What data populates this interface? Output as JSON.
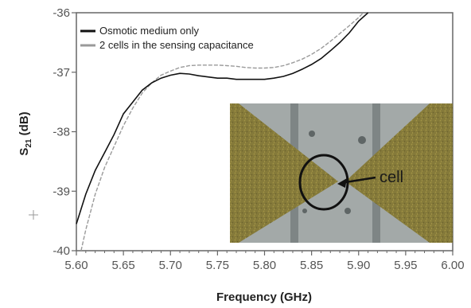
{
  "chart_data": {
    "type": "line",
    "title": "",
    "xlabel": "Frequency (GHz)",
    "ylabel_main": "S",
    "ylabel_sub": "21",
    "ylabel_unit": " (dB)",
    "xlim": [
      5.6,
      6.0
    ],
    "ylim": [
      -40,
      -36
    ],
    "x_ticks": [
      "5.60",
      "5.65",
      "5.70",
      "5.75",
      "5.80",
      "5.85",
      "5.90",
      "5.95",
      "6.00"
    ],
    "y_ticks": [
      "-36",
      "-37",
      "-38",
      "-39",
      "-40"
    ],
    "legend_position": "top-left",
    "series": [
      {
        "name": "Osmotic medium only",
        "color": "#111111",
        "points": [
          [
            5.6,
            -39.55
          ],
          [
            5.61,
            -39.05
          ],
          [
            5.62,
            -38.65
          ],
          [
            5.63,
            -38.35
          ],
          [
            5.64,
            -38.05
          ],
          [
            5.65,
            -37.7
          ],
          [
            5.66,
            -37.5
          ],
          [
            5.67,
            -37.3
          ],
          [
            5.68,
            -37.18
          ],
          [
            5.69,
            -37.1
          ],
          [
            5.7,
            -37.05
          ],
          [
            5.71,
            -37.02
          ],
          [
            5.72,
            -37.03
          ],
          [
            5.73,
            -37.06
          ],
          [
            5.74,
            -37.08
          ],
          [
            5.75,
            -37.1
          ],
          [
            5.76,
            -37.1
          ],
          [
            5.77,
            -37.12
          ],
          [
            5.78,
            -37.12
          ],
          [
            5.79,
            -37.12
          ],
          [
            5.8,
            -37.12
          ],
          [
            5.81,
            -37.1
          ],
          [
            5.82,
            -37.07
          ],
          [
            5.83,
            -37.02
          ],
          [
            5.84,
            -36.95
          ],
          [
            5.85,
            -36.87
          ],
          [
            5.86,
            -36.77
          ],
          [
            5.87,
            -36.64
          ],
          [
            5.88,
            -36.5
          ],
          [
            5.89,
            -36.34
          ],
          [
            5.9,
            -36.14
          ],
          [
            5.91,
            -36.0
          ]
        ]
      },
      {
        "name": "2 cells in the sensing capacitance",
        "color": "#9a9a9a",
        "points": [
          [
            5.605,
            -40.0
          ],
          [
            5.61,
            -39.65
          ],
          [
            5.62,
            -39.05
          ],
          [
            5.63,
            -38.6
          ],
          [
            5.64,
            -38.25
          ],
          [
            5.65,
            -37.9
          ],
          [
            5.66,
            -37.6
          ],
          [
            5.67,
            -37.35
          ],
          [
            5.68,
            -37.18
          ],
          [
            5.69,
            -37.05
          ],
          [
            5.7,
            -36.98
          ],
          [
            5.71,
            -36.92
          ],
          [
            5.72,
            -36.89
          ],
          [
            5.73,
            -36.88
          ],
          [
            5.74,
            -36.88
          ],
          [
            5.75,
            -36.88
          ],
          [
            5.76,
            -36.89
          ],
          [
            5.77,
            -36.9
          ],
          [
            5.78,
            -36.92
          ],
          [
            5.79,
            -36.93
          ],
          [
            5.8,
            -36.93
          ],
          [
            5.81,
            -36.92
          ],
          [
            5.82,
            -36.89
          ],
          [
            5.83,
            -36.84
          ],
          [
            5.84,
            -36.78
          ],
          [
            5.85,
            -36.7
          ],
          [
            5.86,
            -36.6
          ],
          [
            5.87,
            -36.48
          ],
          [
            5.88,
            -36.35
          ],
          [
            5.89,
            -36.22
          ],
          [
            5.9,
            -36.08
          ],
          [
            5.905,
            -36.0
          ]
        ]
      }
    ],
    "annotations": [
      {
        "text": "cell",
        "location": "inset micrograph"
      }
    ]
  },
  "colors": {
    "axis": "#666666",
    "inset_metal": "#8a7d3c",
    "inset_gap": "#9aa0a0"
  }
}
